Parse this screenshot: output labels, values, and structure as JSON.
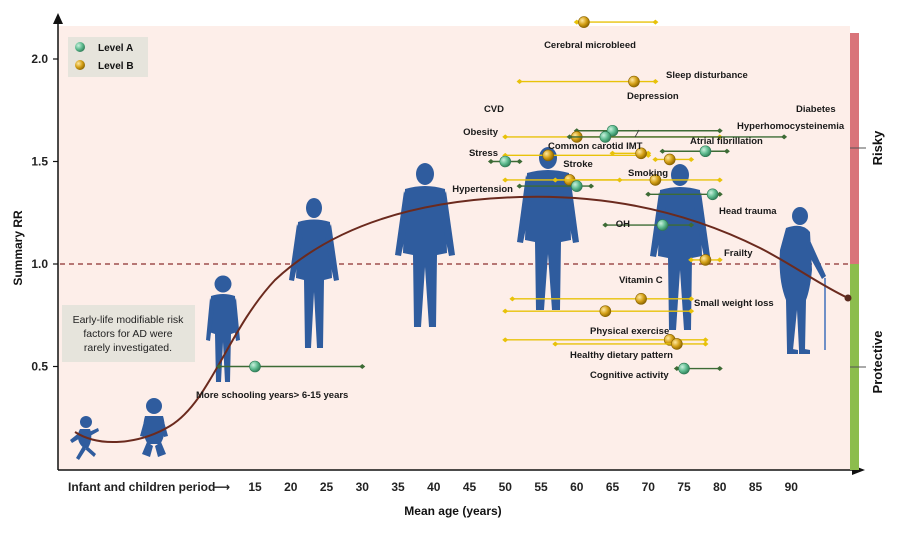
{
  "chart_data": {
    "type": "scatter",
    "title": "",
    "xlabel": "Mean age (years)",
    "ylabel": "Summary RR",
    "x_prefix_label": "Infant and children period",
    "x_prefix_arrow": "⟶",
    "x_ticks": [
      15,
      20,
      25,
      30,
      35,
      40,
      45,
      50,
      55,
      60,
      65,
      70,
      75,
      80,
      85,
      90
    ],
    "y_ticks": [
      0.5,
      1.0,
      1.5,
      2.0
    ],
    "ylim": [
      0.1,
      2.2
    ],
    "reference_line": 1.0,
    "legend": [
      {
        "name": "Level A",
        "color": "#5dbb8f"
      },
      {
        "name": "Level B",
        "color": "#d4a017"
      }
    ],
    "legend_placement": "top-left",
    "side_labels": {
      "risky": "Risky",
      "protective": "Protective"
    },
    "note": [
      "Early-life modifiable risk",
      "factors for AD were",
      "rarely investigated."
    ],
    "colors": {
      "level_a_line": "#3d6b35",
      "level_b_line": "#e8c20a",
      "curve": "#6b2a1e",
      "silhouette": "#2f5c9e",
      "background": "#fdeee9",
      "risky_bar": "#d9747a",
      "protective_bar": "#8cbd4d"
    },
    "risk_factors": [
      {
        "name": "Cerebral microbleed",
        "level": "B",
        "rr": 2.18,
        "age": 61,
        "ci_age": [
          60,
          71
        ]
      },
      {
        "name": "Sleep disturbance",
        "level": "B",
        "rr": 1.89,
        "age": 68,
        "ci_age": [
          52,
          71
        ]
      },
      {
        "name": "Depression",
        "level": "A",
        "rr": 1.65,
        "age": 65,
        "ci_age": [
          60,
          80
        ]
      },
      {
        "name": "CVD",
        "level": "B",
        "rr": 1.62,
        "age": 60,
        "ci_age": [
          50,
          80
        ]
      },
      {
        "name": "Diabetes",
        "level": "A",
        "rr": 1.62,
        "age": 64,
        "ci_age": [
          59,
          89
        ]
      },
      {
        "name": "Hyperhomocysteinemia",
        "level": "A",
        "rr": 1.55,
        "age": 78,
        "ci_age": [
          72,
          81
        ]
      },
      {
        "name": "Obesity",
        "level": "B",
        "rr": 1.53,
        "age": 56,
        "ci_age": [
          50,
          70
        ]
      },
      {
        "name": "Common carotid IMT",
        "level": "B",
        "rr": 1.54,
        "age": 69,
        "ci_age": [
          65,
          70
        ]
      },
      {
        "name": "Atrial fibrillation",
        "level": "B",
        "rr": 1.51,
        "age": 73,
        "ci_age": [
          71,
          76
        ]
      },
      {
        "name": "Stress",
        "level": "A",
        "rr": 1.5,
        "age": 50,
        "ci_age": [
          48,
          52
        ]
      },
      {
        "name": "Stroke",
        "level": "B",
        "rr": 1.41,
        "age": 59,
        "ci_age": [
          57,
          66
        ]
      },
      {
        "name": "Smoking",
        "level": "B",
        "rr": 1.41,
        "age": 71,
        "ci_age": [
          50,
          80
        ]
      },
      {
        "name": "Hypertension",
        "level": "A",
        "rr": 1.38,
        "age": 60,
        "ci_age": [
          52,
          62
        ]
      },
      {
        "name": "Head trauma",
        "level": "A",
        "rr": 1.34,
        "age": 79,
        "ci_age": [
          70,
          80
        ]
      },
      {
        "name": "OH",
        "level": "A",
        "rr": 1.19,
        "age": 72,
        "ci_age": [
          64,
          76
        ]
      },
      {
        "name": "Frailty",
        "level": "B",
        "rr": 1.02,
        "age": 78,
        "ci_age": [
          76,
          80
        ]
      },
      {
        "name": "Vitamin C",
        "level": "B",
        "rr": 0.83,
        "age": 69,
        "ci_age": [
          51,
          76
        ]
      },
      {
        "name": "Small weight loss",
        "level": "B",
        "rr": 0.77,
        "age": 64,
        "ci_age": [
          50,
          76
        ]
      },
      {
        "name": "Physical exercise",
        "level": "B",
        "rr": 0.63,
        "age": 73,
        "ci_age": [
          50,
          78
        ]
      },
      {
        "name": "Healthy dietary pattern",
        "level": "B",
        "rr": 0.61,
        "age": 74,
        "ci_age": [
          57,
          78
        ]
      },
      {
        "name": "Cognitive activity",
        "level": "A",
        "rr": 0.49,
        "age": 75,
        "ci_age": [
          74,
          80
        ]
      },
      {
        "name": "More schooling years> 6-15 years",
        "level": "A",
        "rr": 0.5,
        "age": 15,
        "ci_age": [
          10,
          30
        ]
      }
    ]
  }
}
